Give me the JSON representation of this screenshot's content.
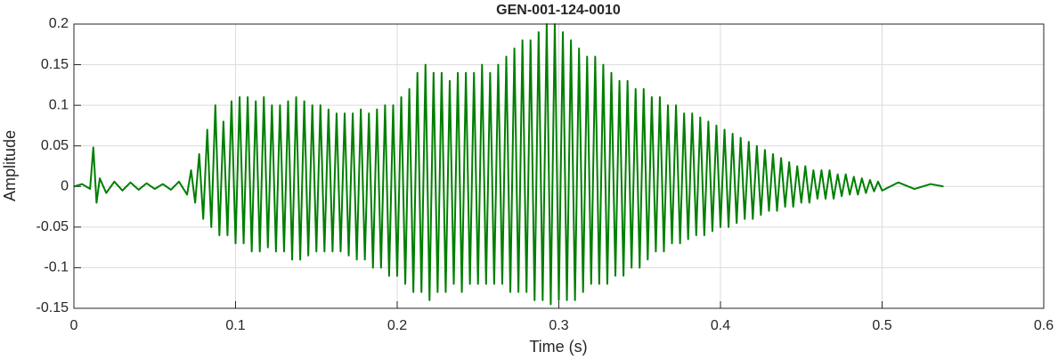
{
  "chart_data": {
    "type": "line",
    "title": "GEN-001-124-0010",
    "x_label": "Time (s)",
    "y_label": "Amplitude",
    "color": "#007f00",
    "grid": true,
    "xlim": [
      0,
      0.6
    ],
    "xticks": [
      0,
      0.1,
      0.2,
      0.3,
      0.4,
      0.5,
      0.6
    ],
    "ylim": [
      -0.15,
      0.2
    ],
    "yticks": [
      -0.15,
      -0.1,
      -0.05,
      0,
      0.05,
      0.1,
      0.15,
      0.2
    ],
    "x": [
      0,
      0.005,
      0.01,
      0.012,
      0.014,
      0.016,
      0.02,
      0.025,
      0.03,
      0.035,
      0.04,
      0.045,
      0.05,
      0.055,
      0.06,
      0.065,
      0.07,
      0.0725,
      0.075,
      0.0775,
      0.08,
      0.0825,
      0.085,
      0.0875,
      0.09,
      0.0925,
      0.095,
      0.0975,
      0.1,
      0.1025,
      0.105,
      0.1075,
      0.11,
      0.1125,
      0.115,
      0.1175,
      0.12,
      0.1225,
      0.125,
      0.1275,
      0.13,
      0.1325,
      0.135,
      0.1375,
      0.14,
      0.1425,
      0.145,
      0.1475,
      0.15,
      0.1525,
      0.155,
      0.1575,
      0.16,
      0.1625,
      0.165,
      0.1675,
      0.17,
      0.1725,
      0.175,
      0.1775,
      0.18,
      0.1825,
      0.185,
      0.1875,
      0.19,
      0.1925,
      0.195,
      0.1975,
      0.2,
      0.2025,
      0.205,
      0.2075,
      0.21,
      0.2125,
      0.215,
      0.2175,
      0.22,
      0.2225,
      0.225,
      0.2275,
      0.23,
      0.2325,
      0.235,
      0.2375,
      0.24,
      0.2425,
      0.245,
      0.2475,
      0.25,
      0.2525,
      0.255,
      0.2575,
      0.26,
      0.2625,
      0.265,
      0.2675,
      0.27,
      0.2725,
      0.275,
      0.2775,
      0.28,
      0.2825,
      0.285,
      0.2875,
      0.29,
      0.2925,
      0.295,
      0.2975,
      0.3,
      0.3025,
      0.305,
      0.3075,
      0.31,
      0.3125,
      0.315,
      0.3175,
      0.32,
      0.3225,
      0.325,
      0.3275,
      0.33,
      0.3325,
      0.335,
      0.3375,
      0.34,
      0.3425,
      0.345,
      0.3475,
      0.35,
      0.3525,
      0.355,
      0.3575,
      0.36,
      0.3625,
      0.365,
      0.3675,
      0.37,
      0.3725,
      0.375,
      0.3775,
      0.38,
      0.3825,
      0.385,
      0.3875,
      0.39,
      0.3925,
      0.395,
      0.3975,
      0.4,
      0.4025,
      0.405,
      0.4075,
      0.41,
      0.4125,
      0.415,
      0.4175,
      0.42,
      0.4225,
      0.425,
      0.4275,
      0.43,
      0.4325,
      0.435,
      0.4375,
      0.44,
      0.4425,
      0.445,
      0.4475,
      0.45,
      0.4525,
      0.455,
      0.4575,
      0.46,
      0.4625,
      0.465,
      0.4675,
      0.47,
      0.4725,
      0.475,
      0.4775,
      0.48,
      0.4825,
      0.485,
      0.4875,
      0.49,
      0.4925,
      0.495,
      0.4975,
      0.5,
      0.51,
      0.52,
      0.53,
      0.538
    ],
    "values": [
      0,
      0.003,
      -0.003,
      0.048,
      -0.02,
      0.01,
      -0.008,
      0.006,
      -0.005,
      0.005,
      -0.004,
      0.004,
      -0.003,
      0.003,
      -0.004,
      0.006,
      -0.01,
      0.02,
      -0.02,
      0.04,
      -0.04,
      0.07,
      -0.05,
      0.1,
      -0.06,
      0.08,
      -0.06,
      0.105,
      -0.07,
      0.11,
      -0.07,
      0.11,
      -0.08,
      0.105,
      -0.08,
      0.11,
      -0.075,
      0.1,
      -0.08,
      0.1,
      -0.08,
      0.105,
      -0.09,
      0.11,
      -0.09,
      0.105,
      -0.085,
      0.1,
      -0.08,
      0.1,
      -0.08,
      0.095,
      -0.08,
      0.09,
      -0.08,
      0.09,
      -0.085,
      0.09,
      -0.09,
      0.095,
      -0.09,
      0.09,
      -0.1,
      0.095,
      -0.1,
      0.1,
      -0.11,
      0.1,
      -0.11,
      0.11,
      -0.12,
      0.12,
      -0.13,
      0.14,
      -0.13,
      0.15,
      -0.14,
      0.14,
      -0.13,
      0.14,
      -0.13,
      0.13,
      -0.12,
      0.14,
      -0.13,
      0.14,
      -0.12,
      0.14,
      -0.12,
      0.15,
      -0.12,
      0.14,
      -0.12,
      0.15,
      -0.12,
      0.16,
      -0.13,
      0.17,
      -0.13,
      0.18,
      -0.13,
      0.18,
      -0.14,
      0.19,
      -0.14,
      0.2,
      -0.145,
      0.2,
      -0.14,
      0.19,
      -0.14,
      0.18,
      -0.14,
      0.17,
      -0.13,
      0.16,
      -0.12,
      0.16,
      -0.12,
      0.15,
      -0.12,
      0.14,
      -0.11,
      0.13,
      -0.11,
      0.13,
      -0.1,
      0.12,
      -0.1,
      0.12,
      -0.09,
      0.11,
      -0.08,
      0.11,
      -0.08,
      0.1,
      -0.07,
      0.1,
      -0.07,
      0.09,
      -0.065,
      0.09,
      -0.06,
      0.085,
      -0.06,
      0.08,
      -0.055,
      0.075,
      -0.05,
      0.07,
      -0.05,
      0.065,
      -0.045,
      0.06,
      -0.04,
      0.055,
      -0.04,
      0.05,
      -0.035,
      0.045,
      -0.03,
      0.04,
      -0.03,
      0.035,
      -0.025,
      0.03,
      -0.025,
      0.025,
      -0.02,
      0.025,
      -0.02,
      0.02,
      -0.015,
      0.02,
      -0.015,
      0.02,
      -0.015,
      0.015,
      -0.012,
      0.015,
      -0.01,
      0.012,
      -0.01,
      0.01,
      -0.008,
      0.008,
      -0.006,
      0.006,
      -0.005,
      0.005,
      -0.003,
      0.003,
      0
    ]
  }
}
